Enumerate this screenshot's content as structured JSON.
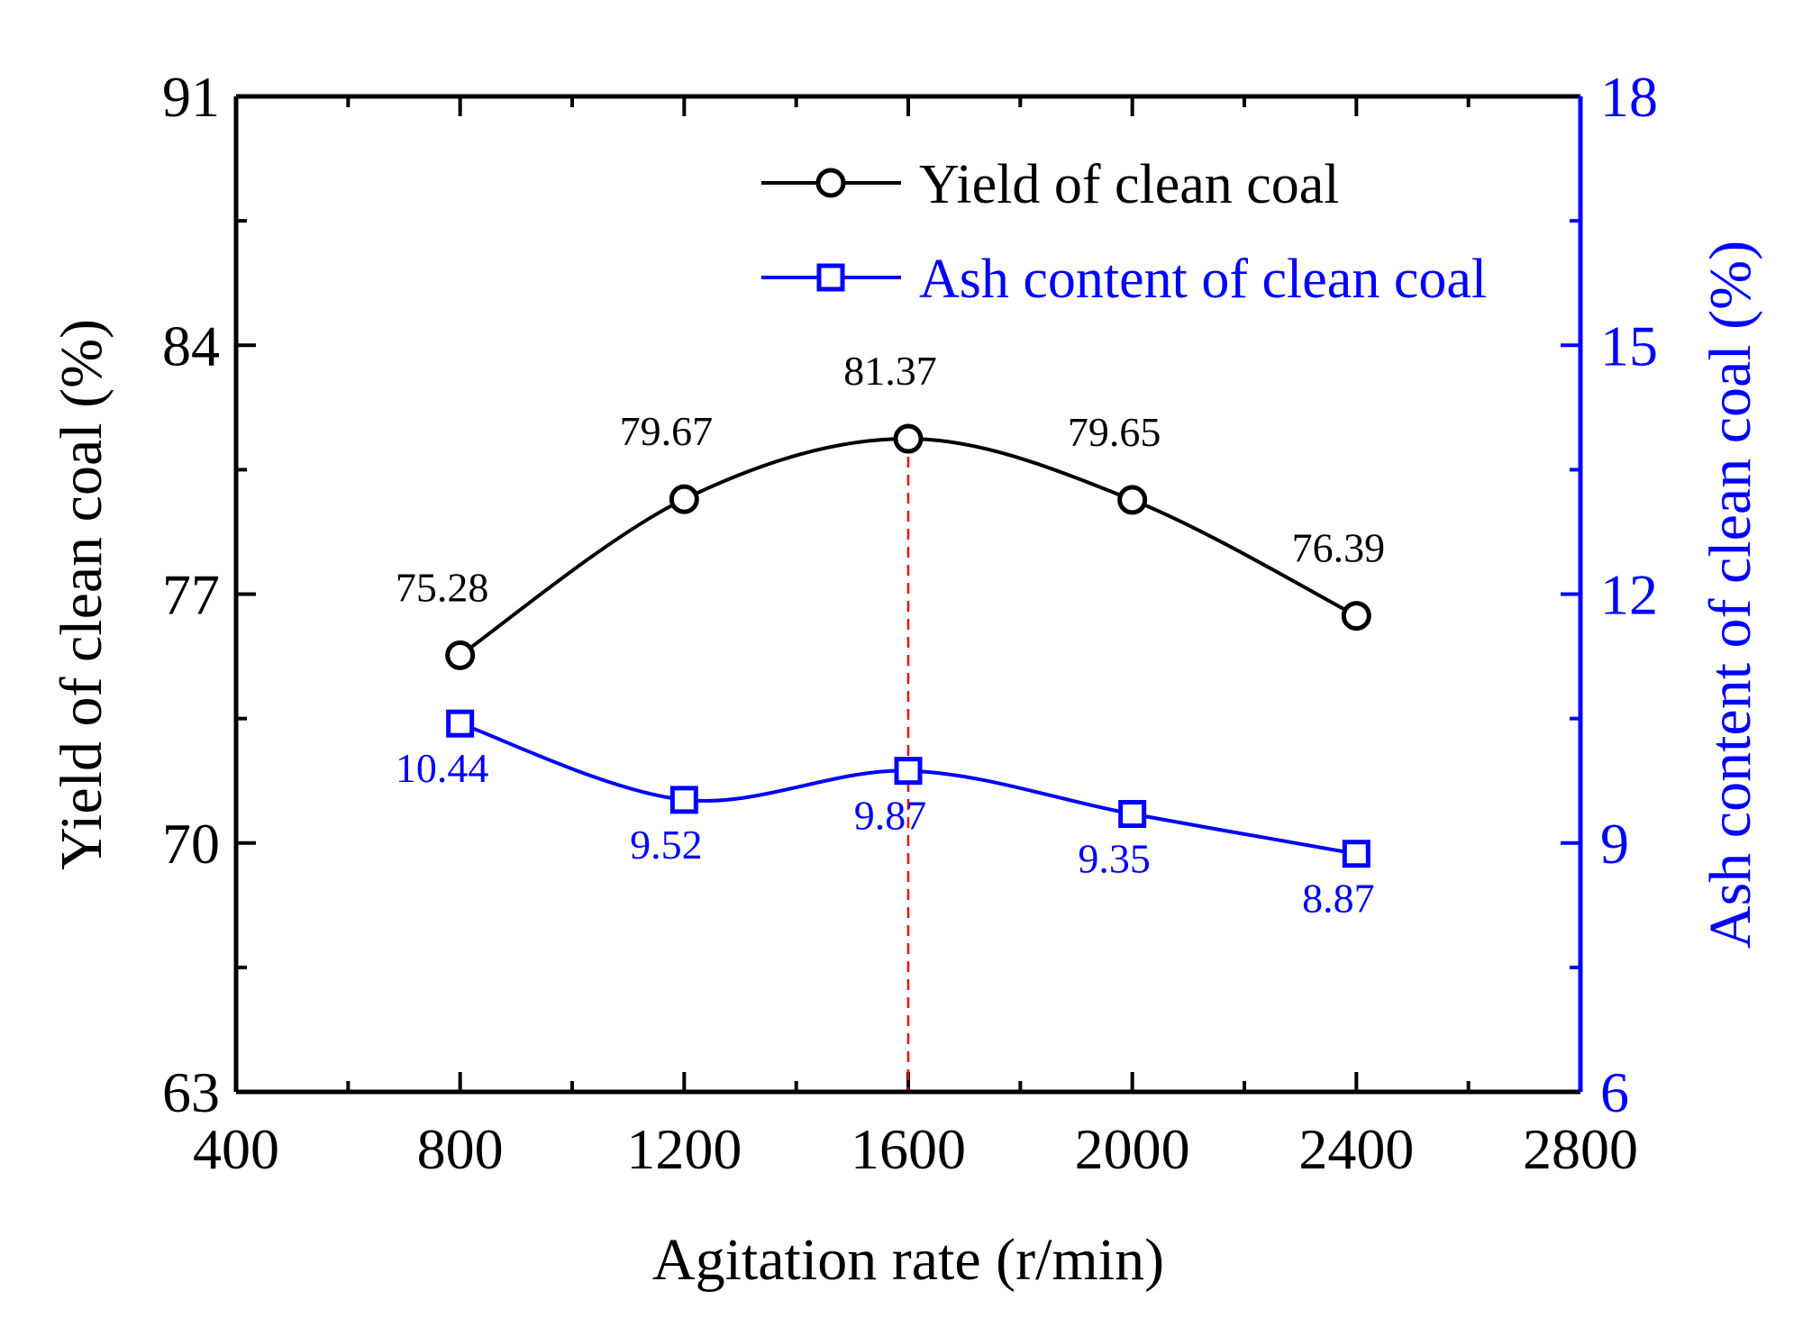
{
  "chart_data": {
    "type": "line",
    "x": [
      800,
      1200,
      1600,
      2000,
      2400
    ],
    "xlabel": "Agitation rate (r/min)",
    "xlim": [
      400,
      2800
    ],
    "xticks": [
      400,
      800,
      1200,
      1600,
      2000,
      2400,
      2800
    ],
    "xtick_labels": [
      "400",
      "800",
      "1200",
      "1600",
      "2000",
      "2400",
      "2800"
    ],
    "ylabel": "Yield of clean coal (%)",
    "ylim": [
      63,
      91
    ],
    "yticks": [
      63,
      70,
      77,
      84,
      91
    ],
    "ytick_labels": [
      "63",
      "70",
      "77",
      "84",
      "91"
    ],
    "y2label": "Ash content of clean coal (%)",
    "y2lim": [
      6,
      18
    ],
    "y2ticks": [
      6,
      9,
      12,
      15,
      18
    ],
    "y2tick_labels": [
      "6",
      "9",
      "12",
      "15",
      "18"
    ],
    "legend_position": "top-right",
    "grid": false,
    "reference_line_x": 1600,
    "reference_line_color": "#ff0000",
    "series": [
      {
        "name": "Yield of clean coal",
        "axis": "left",
        "marker": "circle",
        "color": "#000000",
        "values": [
          75.28,
          79.67,
          81.37,
          79.65,
          76.39
        ],
        "labels": [
          "75.28",
          "79.67",
          "81.37",
          "79.65",
          "76.39"
        ]
      },
      {
        "name": "Ash content of clean coal",
        "axis": "right",
        "marker": "square",
        "color": "#0000ff",
        "values": [
          10.44,
          9.52,
          9.87,
          9.35,
          8.87
        ],
        "labels": [
          "10.44",
          "9.52",
          "9.87",
          "9.35",
          "8.87"
        ]
      }
    ]
  }
}
